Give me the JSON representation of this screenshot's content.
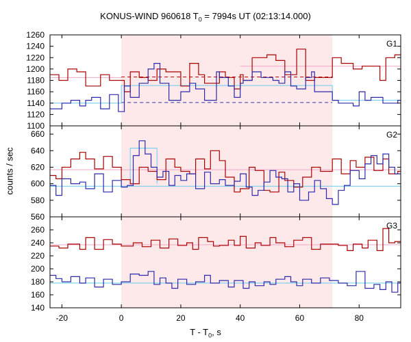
{
  "title": {
    "main": "KONUS-WIND 960618 T",
    "sub": "0",
    "rest": " = 7994s UT (02:13:14.000)"
  },
  "ylabel": "counts / sec",
  "xlabel": {
    "main": "T - T",
    "sub": "0",
    "rest": ", s"
  },
  "colors": {
    "red": "#aa0000",
    "blue": "#2a2aaa",
    "cyan": "#66ccee",
    "pink": "#f0a8c8",
    "shade": "#fde8ea",
    "red_dash": "#bb0000",
    "blue_dash": "#3333aa"
  },
  "chart_data": {
    "type": "line",
    "xlim": [
      -24,
      94
    ],
    "xticks": [
      -20,
      0,
      20,
      40,
      60,
      80
    ],
    "shaded_interval": [
      0,
      71
    ],
    "panels": [
      {
        "label": "G1",
        "ylim": [
          1100,
          1260
        ],
        "yticks": [
          1100,
          1120,
          1140,
          1160,
          1180,
          1200,
          1220,
          1240,
          1260
        ],
        "red_steps": {
          "x": [
            -24,
            -21,
            -18,
            -15,
            -12,
            -7,
            -4,
            1,
            3,
            6,
            9,
            12,
            15,
            20,
            23,
            26,
            28,
            33,
            35,
            38,
            40,
            41,
            44,
            49,
            52,
            55,
            59,
            62,
            65,
            71,
            74,
            78,
            81,
            87,
            89,
            92
          ],
          "y": [
            1190,
            1180,
            1200,
            1195,
            1170,
            1190,
            1180,
            1160,
            1195,
            1185,
            1180,
            1200,
            1195,
            1170,
            1210,
            1190,
            1175,
            1195,
            1185,
            1165,
            1190,
            1180,
            1220,
            1225,
            1215,
            1190,
            1235,
            1180,
            1185,
            1220,
            1210,
            1200,
            1205,
            1180,
            1220,
            1225
          ]
        },
        "blue_steps": {
          "x": [
            -24,
            -20,
            -17,
            -14,
            -12,
            -10,
            -7,
            -4,
            -1,
            1,
            3,
            6,
            9,
            11,
            13,
            16,
            20,
            23,
            25,
            28,
            30,
            32,
            33,
            36,
            38,
            40,
            41,
            44,
            47,
            49,
            51,
            53,
            55,
            57,
            59,
            62,
            64,
            65,
            71,
            73,
            76,
            78,
            80,
            82,
            84,
            88,
            89,
            93
          ],
          "y": [
            1130,
            1140,
            1145,
            1135,
            1145,
            1150,
            1130,
            1155,
            1125,
            1170,
            1150,
            1175,
            1200,
            1210,
            1175,
            1145,
            1160,
            1175,
            1165,
            1145,
            1145,
            1195,
            1185,
            1170,
            1150,
            1175,
            1180,
            1195,
            1185,
            1185,
            1180,
            1175,
            1195,
            1170,
            1165,
            1185,
            1195,
            1160,
            1145,
            1140,
            1140,
            1135,
            1160,
            1145,
            1150,
            1140,
            1140,
            1145
          ]
        },
        "red_bg": {
          "mean": 1186,
          "y_pre": 1185,
          "y_post": 1205
        },
        "blue_bg": {
          "mean": 1141,
          "y_pre": 1140,
          "y_post": 1171,
          "y_post2": 1145
        }
      },
      {
        "label": "G2",
        "ylim": [
          560,
          670
        ],
        "yticks": [
          560,
          580,
          600,
          620,
          640,
          660
        ],
        "red_steps": {
          "x": [
            -24,
            -22,
            -20,
            -17,
            -14,
            -12,
            -9,
            -6,
            -3,
            0,
            3,
            6,
            9,
            12,
            15,
            18,
            20,
            23,
            25,
            28,
            30,
            33,
            35,
            38,
            40,
            43,
            45,
            48,
            50,
            53,
            55,
            58,
            61,
            64,
            67,
            71,
            74,
            77,
            79,
            82,
            85,
            88,
            90,
            93
          ],
          "y": [
            610,
            606,
            620,
            630,
            638,
            630,
            618,
            633,
            620,
            605,
            600,
            620,
            615,
            605,
            630,
            620,
            615,
            612,
            630,
            618,
            640,
            628,
            608,
            590,
            594,
            620,
            616,
            592,
            590,
            614,
            604,
            596,
            608,
            620,
            615,
            630,
            612,
            628,
            620,
            632,
            616,
            630,
            612,
            615
          ]
        },
        "blue_steps": {
          "x": [
            -24,
            -22,
            -20,
            -17,
            -14,
            -12,
            -9,
            -6,
            -3,
            0,
            2,
            4,
            6,
            8,
            10,
            12,
            14,
            16,
            18,
            20,
            22,
            25,
            28,
            30,
            33,
            35,
            38,
            40,
            42,
            44,
            46,
            48,
            50,
            52,
            54,
            56,
            58,
            60,
            63,
            65,
            67,
            69,
            71,
            73,
            75,
            77,
            80,
            82,
            84,
            86,
            88,
            90,
            92
          ],
          "y": [
            598,
            586,
            606,
            600,
            602,
            594,
            612,
            590,
            604,
            596,
            598,
            634,
            652,
            636,
            620,
            608,
            615,
            598,
            610,
            604,
            612,
            594,
            614,
            600,
            605,
            598,
            603,
            612,
            596,
            586,
            592,
            602,
            616,
            608,
            606,
            590,
            600,
            580,
            590,
            604,
            594,
            582,
            575,
            592,
            598,
            616,
            606,
            624,
            634,
            624,
            636,
            620,
            612
          ]
        },
        "red_bg": {
          "mean": 617
        },
        "blue_bg": {
          "mean": 597
        }
      },
      {
        "label": "G3",
        "ylim": [
          140,
          280
        ],
        "yticks": [
          140,
          160,
          180,
          200,
          220,
          240,
          260
        ],
        "red_steps": {
          "x": [
            -24,
            -21,
            -18,
            -14,
            -12,
            -9,
            -6,
            -3,
            0,
            4,
            7,
            10,
            13,
            16,
            19,
            22,
            24,
            26,
            29,
            31,
            33,
            36,
            38,
            40,
            42,
            45,
            47,
            50,
            52,
            55,
            58,
            61,
            64,
            67,
            70,
            73,
            76,
            78,
            81,
            83,
            86,
            88,
            90,
            92
          ],
          "y": [
            235,
            232,
            238,
            230,
            248,
            230,
            245,
            238,
            235,
            240,
            234,
            244,
            232,
            246,
            236,
            240,
            230,
            248,
            242,
            235,
            236,
            244,
            236,
            250,
            232,
            240,
            236,
            248,
            240,
            234,
            244,
            248,
            230,
            238,
            238,
            236,
            228,
            238,
            232,
            244,
            228,
            262,
            240,
            242
          ]
        },
        "blue_steps": {
          "x": [
            -24,
            -22,
            -20,
            -17,
            -14,
            -12,
            -9,
            -6,
            -3,
            0,
            3,
            6,
            9,
            11,
            13,
            15,
            17,
            19,
            22,
            25,
            28,
            30,
            33,
            36,
            38,
            41,
            43,
            45,
            48,
            50,
            52,
            55,
            57,
            59,
            61,
            64,
            67,
            70,
            73,
            76,
            79,
            82,
            85,
            87,
            89,
            91,
            93
          ],
          "y": [
            190,
            185,
            180,
            188,
            178,
            186,
            172,
            184,
            176,
            180,
            192,
            190,
            196,
            176,
            186,
            178,
            170,
            184,
            176,
            180,
            190,
            178,
            182,
            172,
            182,
            170,
            180,
            174,
            180,
            176,
            184,
            188,
            180,
            174,
            184,
            178,
            186,
            182,
            178,
            174,
            196,
            170,
            176,
            168,
            180,
            164,
            178
          ]
        },
        "red_bg": {
          "mean": 237
        },
        "blue_bg": {
          "mean": 178
        }
      }
    ]
  }
}
